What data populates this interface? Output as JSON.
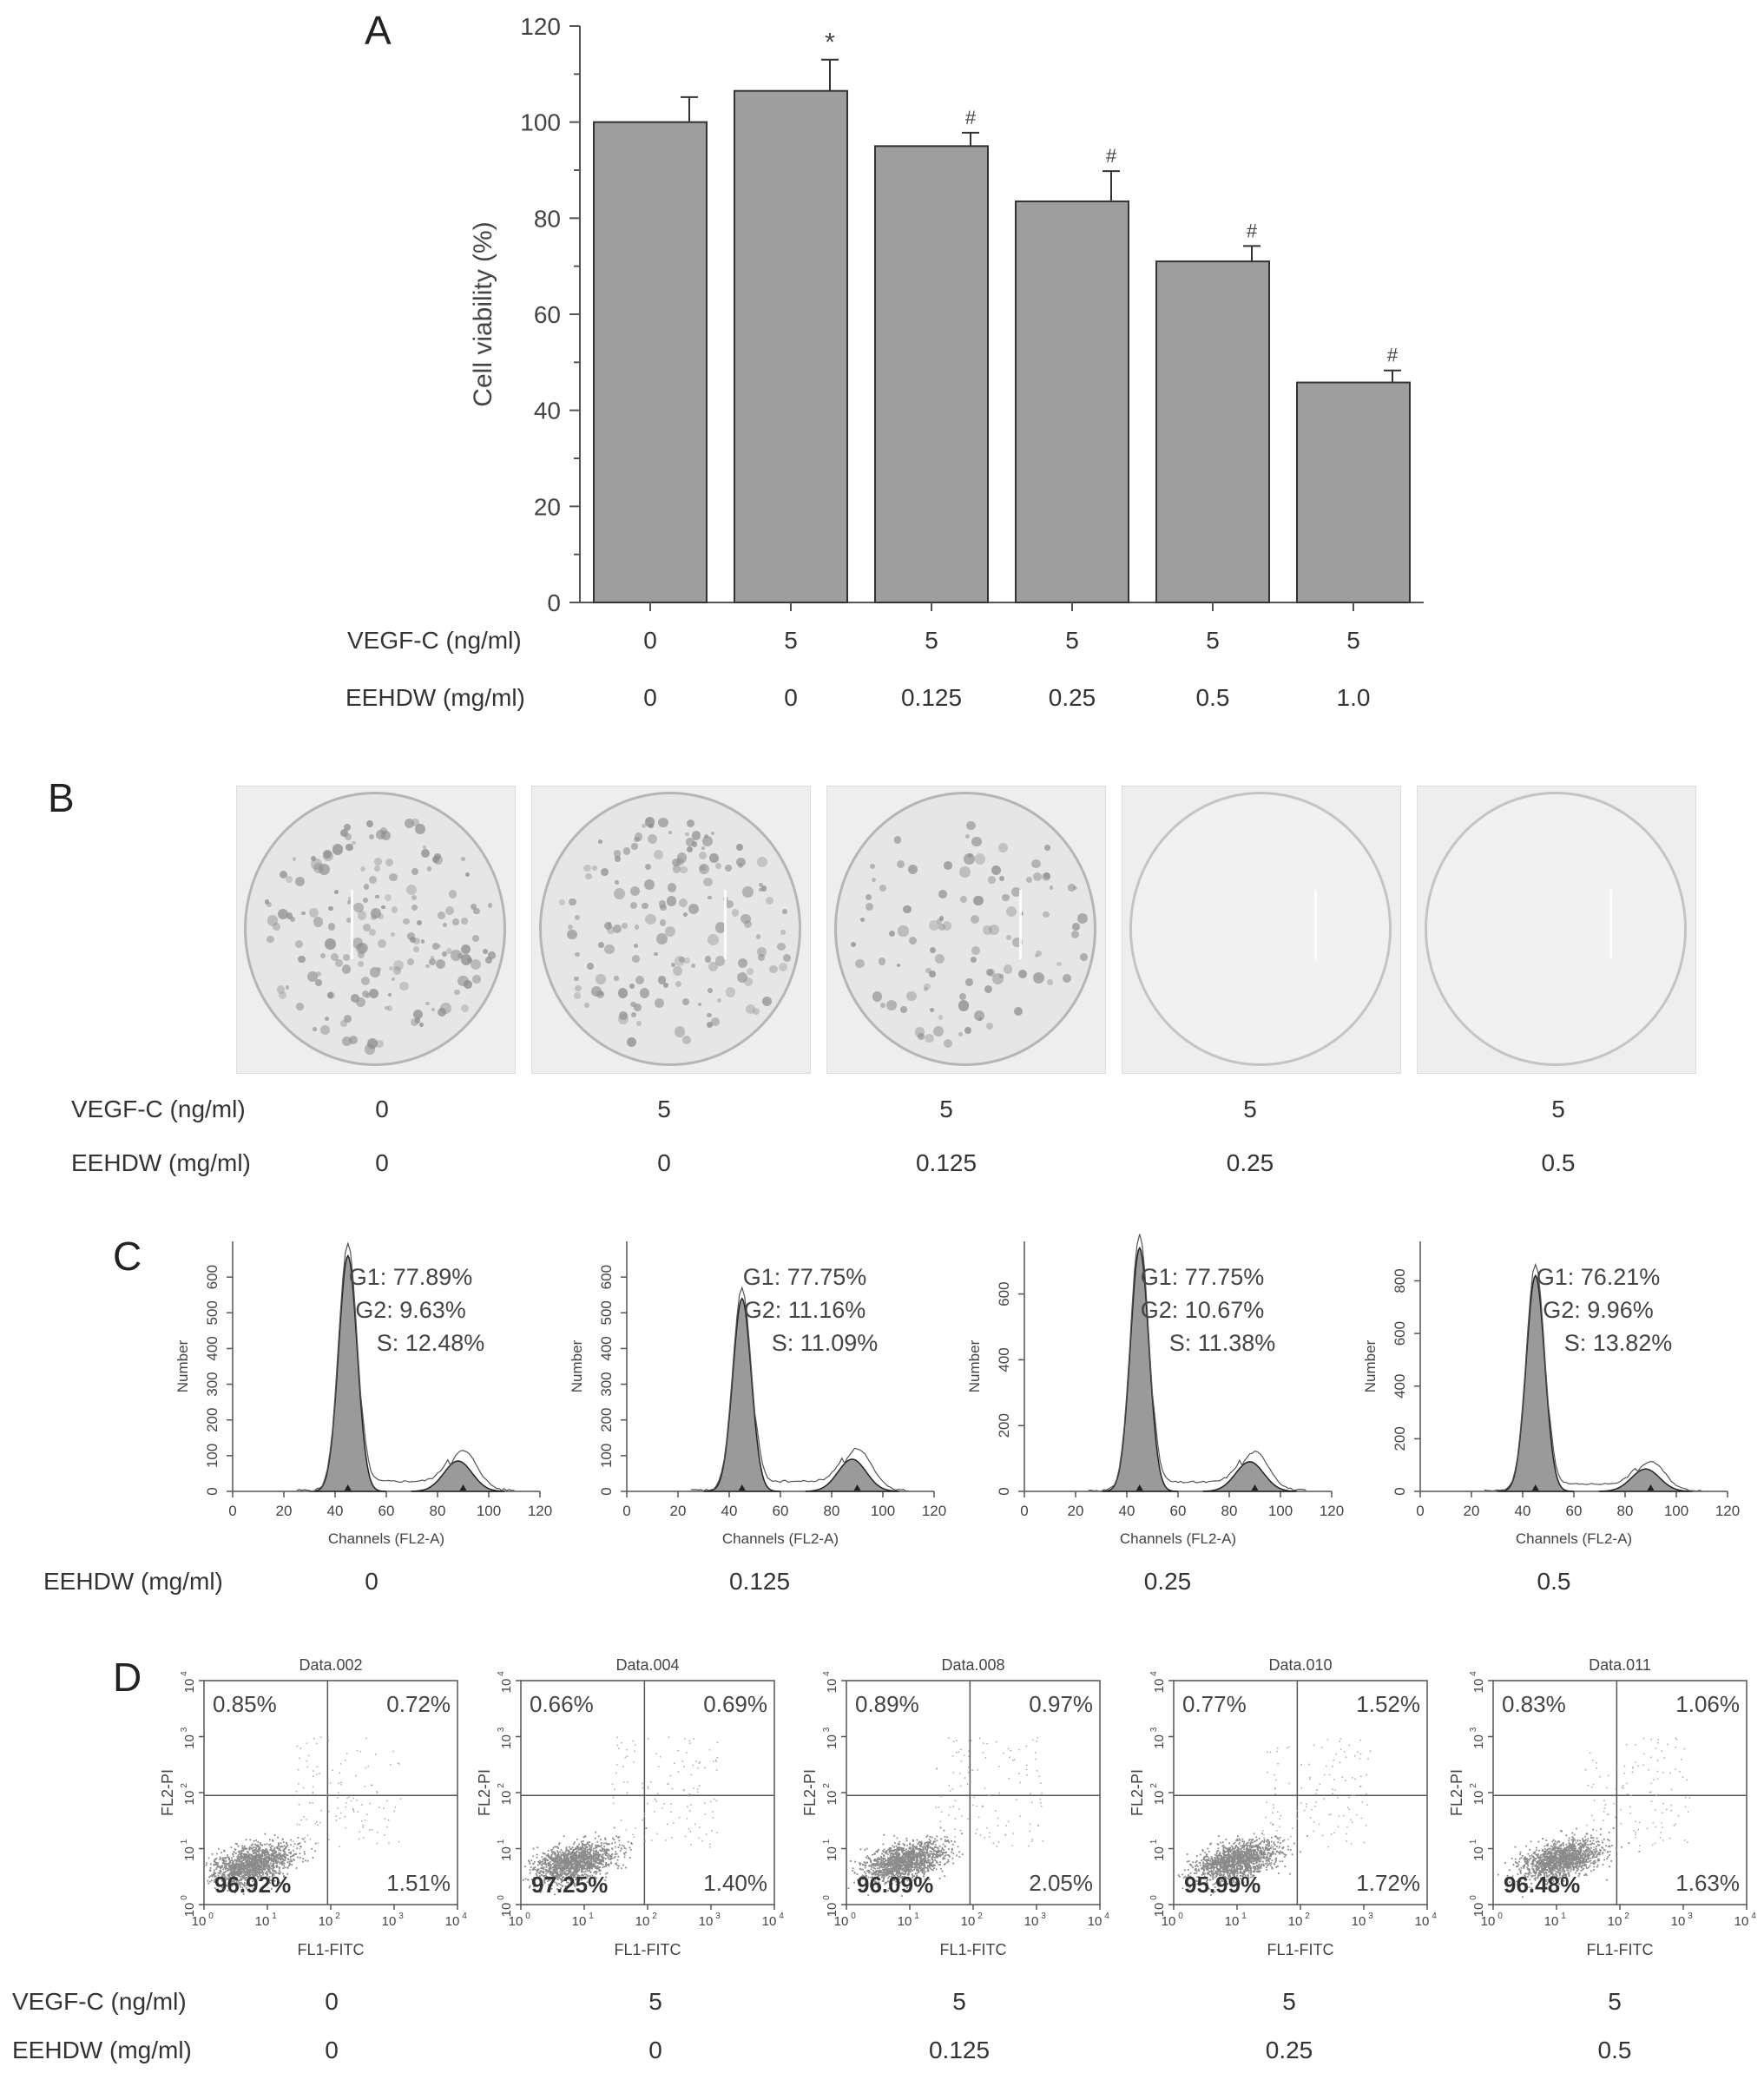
{
  "panels": {
    "A": "A",
    "B": "B",
    "C": "C",
    "D": "D"
  },
  "labels": {
    "vegf": "VEGF-C (ng/ml)",
    "eehdw": "EEHDW (mg/ml)"
  },
  "chart_data": [
    {
      "type": "bar",
      "panel": "A",
      "categories": [
        "0/0",
        "5/0",
        "5/0.125",
        "5/0.25",
        "5/0.5",
        "5/1.0"
      ],
      "vegf": [
        "0",
        "5",
        "5",
        "5",
        "5",
        "5"
      ],
      "eehdw": [
        "0",
        "0",
        "0.125",
        "0.25",
        "0.5",
        "1.0"
      ],
      "values": [
        100,
        106.5,
        95,
        83.5,
        71,
        45.8
      ],
      "errors": [
        5.2,
        6.5,
        2.8,
        6.3,
        3.2,
        2.5
      ],
      "significance": [
        "",
        "*",
        "#",
        "#",
        "#",
        "#"
      ],
      "ylabel": "Cell viability (%)",
      "ylim": [
        0,
        120
      ],
      "yticks": [
        "0",
        "20",
        "40",
        "60",
        "80",
        "100",
        "120"
      ],
      "bar_color": "#9e9e9e"
    },
    {
      "type": "histogram",
      "panel": "C",
      "ylabel": "Number",
      "xlabel": "Channels (FL2-A)",
      "xticks": [
        "0",
        "20",
        "40",
        "60",
        "80",
        "100",
        "120"
      ],
      "eehdw_row": [
        "0",
        "0.125",
        "0.25",
        "0.5"
      ],
      "plots": [
        {
          "g1": "G1: 77.89%",
          "g2": "G2: 9.63%",
          "s": "S: 12.48%",
          "yticks": [
            "0",
            "100",
            "200",
            "300",
            "400",
            "500",
            "600"
          ],
          "ymax": 700,
          "peak1": 660,
          "peak2": 85
        },
        {
          "g1": "G1: 77.75%",
          "g2": "G2: 11.16%",
          "s": "S: 11.09%",
          "yticks": [
            "0",
            "100",
            "200",
            "300",
            "400",
            "500",
            "600"
          ],
          "ymax": 700,
          "peak1": 540,
          "peak2": 90
        },
        {
          "g1": "G1: 77.75%",
          "g2": "G2: 10.67%",
          "s": "S: 11.38%",
          "yticks": [
            "0",
            "200",
            "400",
            "600"
          ],
          "ymax": 760,
          "peak1": 740,
          "peak2": 90
        },
        {
          "g1": "G1: 76.21%",
          "g2": "G2: 9.96%",
          "s": "S: 13.82%",
          "yticks": [
            "0",
            "200",
            "400",
            "600",
            "800"
          ],
          "ymax": 950,
          "peak1": 820,
          "peak2": 85
        }
      ]
    },
    {
      "type": "scatter",
      "panel": "D",
      "ylabel": "FL2-PI",
      "xlabel": "FL1-FITC",
      "vegf_row": [
        "0",
        "5",
        "5",
        "5",
        "5"
      ],
      "eehdw_row": [
        "0",
        "0",
        "0.125",
        "0.25",
        "0.5"
      ],
      "plots": [
        {
          "title": "Data.002",
          "ul": "0.85%",
          "ur": "0.72%",
          "ll": "96.92%",
          "lr": "1.51%"
        },
        {
          "title": "Data.004",
          "ul": "0.66%",
          "ur": "0.69%",
          "ll": "97.25%",
          "lr": "1.40%"
        },
        {
          "title": "Data.008",
          "ul": "0.89%",
          "ur": "0.97%",
          "ll": "96.09%",
          "lr": "2.05%"
        },
        {
          "title": "Data.010",
          "ul": "0.77%",
          "ur": "1.52%",
          "ll": "95.99%",
          "lr": "1.72%"
        },
        {
          "title": "Data.011",
          "ul": "0.83%",
          "ur": "1.06%",
          "ll": "96.48%",
          "lr": "1.63%"
        }
      ]
    }
  ],
  "panel_b": {
    "vegf_row": [
      "0",
      "5",
      "5",
      "5",
      "5"
    ],
    "eehdw_row": [
      "0",
      "0",
      "0.125",
      "0.25",
      "0.5"
    ],
    "colony_density": [
      1.0,
      0.9,
      0.6,
      0.0,
      0.0
    ]
  }
}
